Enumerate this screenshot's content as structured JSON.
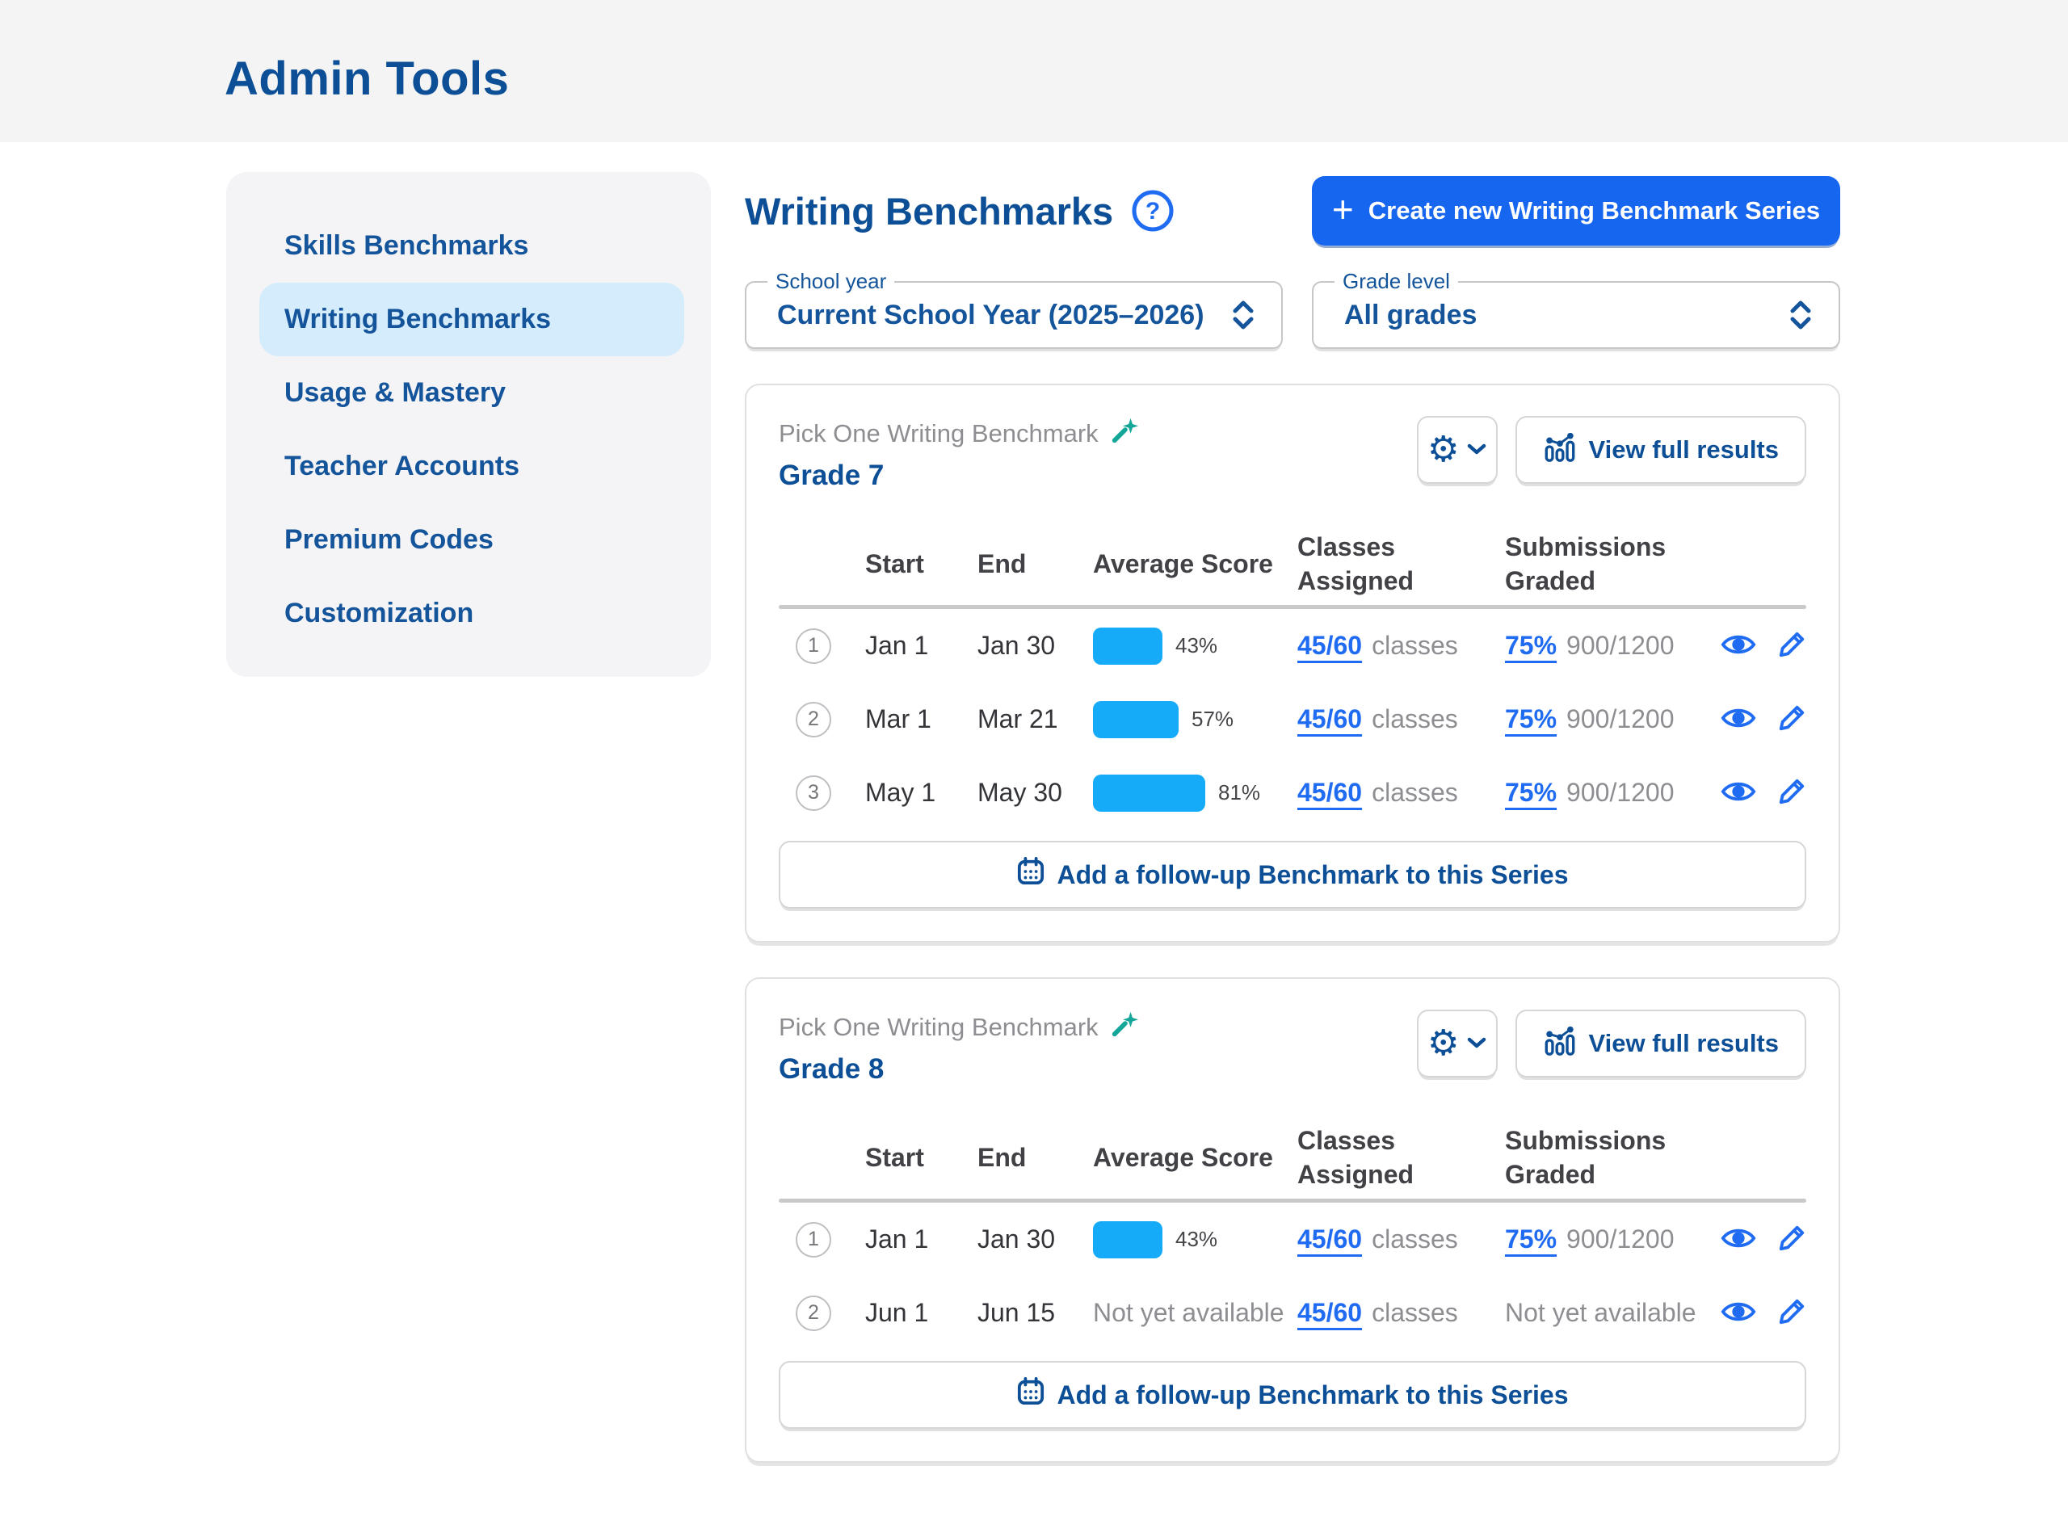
{
  "page_title": "Admin Tools",
  "sidebar": {
    "items": [
      {
        "label": "Skills Benchmarks",
        "active": false
      },
      {
        "label": "Writing Benchmarks",
        "active": true
      },
      {
        "label": "Usage & Mastery",
        "active": false
      },
      {
        "label": "Teacher Accounts",
        "active": false
      },
      {
        "label": "Premium Codes",
        "active": false
      },
      {
        "label": "Customization",
        "active": false
      }
    ]
  },
  "main": {
    "heading": "Writing Benchmarks",
    "help_icon": "question-mark-circle",
    "create_button_label": "Create new Writing Benchmark Series",
    "filters": {
      "school_year_label": "School year",
      "school_year_value": "Current School Year (2025–2026)",
      "grade_level_label": "Grade level",
      "grade_level_value": "All grades"
    },
    "columns": {
      "start": "Start",
      "end": "End",
      "avg": "Average Score",
      "classes": "Classes Assigned",
      "subs": "Submissions Graded"
    },
    "cards": [
      {
        "series_type": "Pick One Writing Benchmark",
        "grade": "Grade 7",
        "view_full_results_label": "View full results",
        "add_followup_label": "Add a follow-up Benchmark to this Series",
        "rows": [
          {
            "num": "1",
            "start": "Jan 1",
            "end": "Jan 30",
            "avg_pct": 43,
            "avg_label": "43%",
            "classes_value": "45/60",
            "classes_unit": "classes",
            "subs_value": "75%",
            "subs_detail": "900/1200"
          },
          {
            "num": "2",
            "start": "Mar 1",
            "end": "Mar 21",
            "avg_pct": 57,
            "avg_label": "57%",
            "classes_value": "45/60",
            "classes_unit": "classes",
            "subs_value": "75%",
            "subs_detail": "900/1200"
          },
          {
            "num": "3",
            "start": "May 1",
            "end": "May 30",
            "avg_pct": 81,
            "avg_label": "81%",
            "classes_value": "45/60",
            "classes_unit": "classes",
            "subs_value": "75%",
            "subs_detail": "900/1200"
          }
        ]
      },
      {
        "series_type": "Pick One Writing Benchmark",
        "grade": "Grade 8",
        "view_full_results_label": "View full results",
        "add_followup_label": "Add a follow-up Benchmark to this Series",
        "rows": [
          {
            "num": "1",
            "start": "Jan 1",
            "end": "Jan 30",
            "avg_pct": 43,
            "avg_label": "43%",
            "classes_value": "45/60",
            "classes_unit": "classes",
            "subs_value": "75%",
            "subs_detail": "900/1200"
          },
          {
            "num": "2",
            "start": "Jun 1",
            "end": "Jun 15",
            "avg_na": "Not yet available",
            "classes_value": "45/60",
            "classes_unit": "classes",
            "subs_na": "Not yet available"
          }
        ]
      }
    ]
  },
  "colors": {
    "header_band_bg": "#f4f4f4",
    "sidebar_bg": "#f4f4f6",
    "active_item_bg": "#d4ecfb",
    "dark_blue": "#0d4f96",
    "accent_blue": "#1f6bf2",
    "create_button_bg": "#1766f0",
    "score_bar_blue": "#16abf8",
    "wand_teal": "#14a699",
    "muted_gray": "#8e8e92"
  }
}
